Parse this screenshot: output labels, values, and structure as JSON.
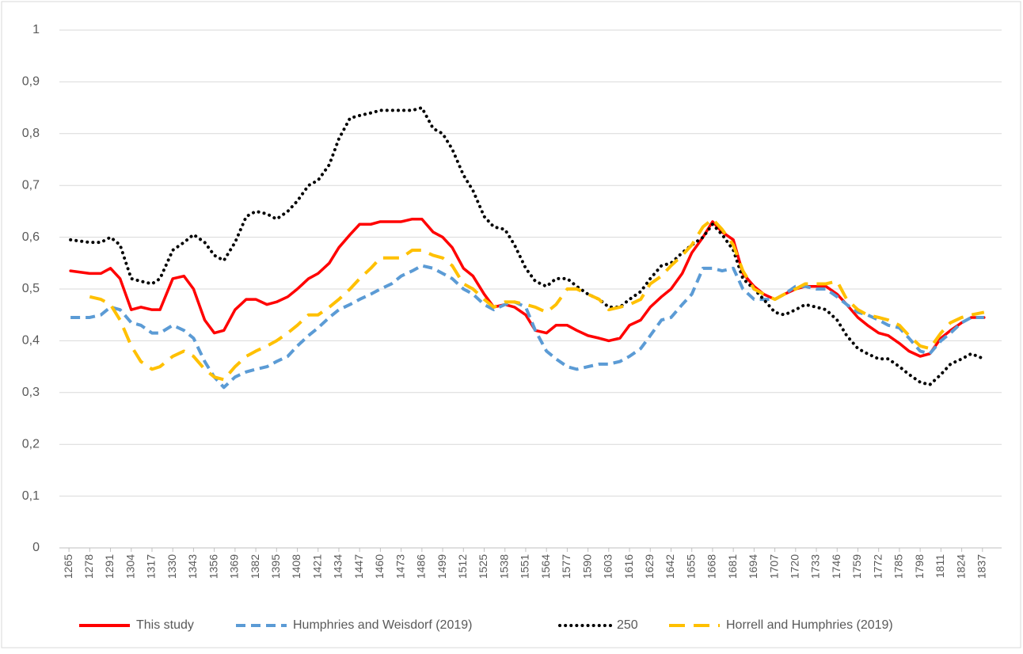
{
  "chart_data": {
    "type": "line",
    "x": [
      1266,
      1278,
      1285,
      1291,
      1297,
      1304,
      1310,
      1317,
      1322,
      1330,
      1337,
      1343,
      1350,
      1356,
      1362,
      1369,
      1376,
      1382,
      1389,
      1395,
      1402,
      1408,
      1415,
      1421,
      1428,
      1434,
      1441,
      1447,
      1454,
      1460,
      1467,
      1473,
      1480,
      1486,
      1493,
      1499,
      1505,
      1512,
      1518,
      1525,
      1531,
      1538,
      1544,
      1551,
      1557,
      1564,
      1570,
      1577,
      1583,
      1590,
      1597,
      1603,
      1610,
      1616,
      1623,
      1629,
      1636,
      1642,
      1649,
      1655,
      1662,
      1668,
      1674,
      1681,
      1687,
      1694,
      1700,
      1707,
      1713,
      1720,
      1726,
      1733,
      1739,
      1746,
      1752,
      1759,
      1765,
      1772,
      1778,
      1785,
      1791,
      1798,
      1804,
      1811,
      1817,
      1824,
      1830,
      1838
    ],
    "series": [
      {
        "name": "This study",
        "color": "#ff0000",
        "dash": "solid",
        "values": [
          0.535,
          0.53,
          0.53,
          0.54,
          0.52,
          0.46,
          0.465,
          0.46,
          0.46,
          0.52,
          0.525,
          0.5,
          0.44,
          0.415,
          0.42,
          0.46,
          0.48,
          0.48,
          0.47,
          0.475,
          0.485,
          0.5,
          0.52,
          0.53,
          0.55,
          0.58,
          0.605,
          0.625,
          0.625,
          0.63,
          0.63,
          0.63,
          0.635,
          0.635,
          0.61,
          0.6,
          0.58,
          0.54,
          0.525,
          0.49,
          0.465,
          0.47,
          0.465,
          0.45,
          0.42,
          0.415,
          0.43,
          0.43,
          0.42,
          0.41,
          0.405,
          0.4,
          0.405,
          0.43,
          0.44,
          0.465,
          0.485,
          0.5,
          0.53,
          0.57,
          0.6,
          0.63,
          0.61,
          0.595,
          0.53,
          0.505,
          0.49,
          0.48,
          0.49,
          0.5,
          0.505,
          0.505,
          0.505,
          0.49,
          0.47,
          0.445,
          0.43,
          0.415,
          0.41,
          0.395,
          0.38,
          0.37,
          0.375,
          0.405,
          0.42,
          0.435,
          0.445,
          0.445
        ]
      },
      {
        "name": "Humphries and Weisdorf (2019)",
        "color": "#5b9bd5",
        "dash": "dash",
        "values": [
          0.445,
          0.445,
          0.45,
          0.465,
          0.46,
          0.435,
          0.43,
          0.415,
          0.415,
          0.43,
          0.42,
          0.405,
          0.36,
          0.33,
          0.31,
          0.33,
          0.34,
          0.345,
          0.35,
          0.36,
          0.37,
          0.39,
          0.41,
          0.425,
          0.445,
          0.46,
          0.47,
          0.48,
          0.49,
          0.5,
          0.51,
          0.525,
          0.535,
          0.545,
          0.54,
          0.53,
          0.52,
          0.5,
          0.49,
          0.47,
          0.46,
          0.47,
          0.475,
          0.465,
          0.42,
          0.38,
          0.365,
          0.35,
          0.345,
          0.35,
          0.355,
          0.355,
          0.36,
          0.37,
          0.385,
          0.41,
          0.44,
          0.445,
          0.47,
          0.49,
          0.54,
          0.54,
          0.535,
          0.54,
          0.5,
          0.48,
          0.48,
          0.48,
          0.49,
          0.505,
          0.505,
          0.5,
          0.5,
          0.485,
          0.47,
          0.455,
          0.45,
          0.44,
          0.43,
          0.425,
          0.405,
          0.38,
          0.375,
          0.4,
          0.415,
          0.435,
          0.445,
          0.445
        ]
      },
      {
        "name": "250",
        "color": "#000000",
        "dash": "dot",
        "values": [
          0.595,
          0.59,
          0.59,
          0.6,
          0.585,
          0.52,
          0.515,
          0.51,
          0.52,
          0.575,
          0.59,
          0.605,
          0.59,
          0.565,
          0.555,
          0.59,
          0.64,
          0.65,
          0.645,
          0.635,
          0.65,
          0.67,
          0.7,
          0.71,
          0.74,
          0.79,
          0.83,
          0.835,
          0.84,
          0.845,
          0.845,
          0.845,
          0.845,
          0.85,
          0.81,
          0.8,
          0.77,
          0.72,
          0.69,
          0.64,
          0.62,
          0.615,
          0.585,
          0.54,
          0.515,
          0.505,
          0.52,
          0.52,
          0.505,
          0.49,
          0.48,
          0.465,
          0.465,
          0.48,
          0.495,
          0.52,
          0.545,
          0.55,
          0.57,
          0.585,
          0.6,
          0.625,
          0.605,
          0.575,
          0.52,
          0.5,
          0.48,
          0.455,
          0.45,
          0.46,
          0.47,
          0.465,
          0.46,
          0.44,
          0.41,
          0.385,
          0.375,
          0.365,
          0.365,
          0.35,
          0.335,
          0.32,
          0.315,
          0.335,
          0.355,
          0.365,
          0.375,
          0.365
        ]
      },
      {
        "name": "Horrell and Humphries (2019)",
        "color": "#ffc000",
        "dash": "longdash",
        "values": [
          null,
          0.485,
          0.48,
          0.47,
          0.44,
          0.39,
          0.36,
          0.345,
          0.35,
          0.37,
          0.38,
          0.37,
          0.345,
          0.33,
          0.325,
          0.35,
          0.37,
          0.38,
          0.39,
          0.4,
          0.415,
          0.43,
          0.45,
          0.45,
          0.465,
          0.48,
          0.5,
          0.52,
          0.54,
          0.56,
          0.56,
          0.56,
          0.575,
          0.575,
          0.565,
          0.56,
          0.545,
          0.51,
          0.5,
          0.48,
          0.465,
          0.475,
          0.475,
          0.47,
          0.465,
          0.455,
          0.47,
          0.5,
          0.5,
          0.49,
          0.48,
          0.46,
          0.465,
          0.47,
          0.48,
          0.51,
          0.525,
          0.545,
          0.565,
          0.585,
          0.62,
          0.635,
          0.615,
          0.585,
          0.535,
          0.5,
          0.49,
          0.48,
          0.49,
          0.5,
          0.51,
          0.51,
          0.51,
          0.515,
          0.48,
          0.46,
          0.45,
          0.445,
          0.44,
          0.43,
          0.41,
          0.39,
          0.385,
          0.415,
          0.435,
          0.445,
          0.45,
          0.455
        ]
      }
    ],
    "xlim": [
      1259,
      1849
    ],
    "xticks": [
      1265,
      1278,
      1291,
      1304,
      1317,
      1330,
      1343,
      1356,
      1369,
      1382,
      1395,
      1408,
      1421,
      1434,
      1447,
      1460,
      1473,
      1486,
      1499,
      1512,
      1525,
      1538,
      1551,
      1564,
      1577,
      1590,
      1603,
      1616,
      1629,
      1642,
      1655,
      1668,
      1681,
      1694,
      1707,
      1720,
      1733,
      1746,
      1759,
      1772,
      1785,
      1798,
      1811,
      1824,
      1837
    ],
    "ylim": [
      0,
      1
    ],
    "yticks": [
      0,
      {
        "value": 0.1,
        "label": "0,1"
      },
      {
        "value": 0.2,
        "label": "0,2"
      },
      {
        "value": 0.3,
        "label": "0,3"
      },
      {
        "value": 0.4,
        "label": "0,4"
      },
      {
        "value": 0.5,
        "label": "0,5"
      },
      {
        "value": 0.6,
        "label": "0,6"
      },
      {
        "value": 0.7,
        "label": "0,7"
      },
      {
        "value": 0.8,
        "label": "0,8"
      },
      {
        "value": 0.9,
        "label": "0,9"
      },
      1
    ],
    "grid": true,
    "legend": "bottom"
  }
}
